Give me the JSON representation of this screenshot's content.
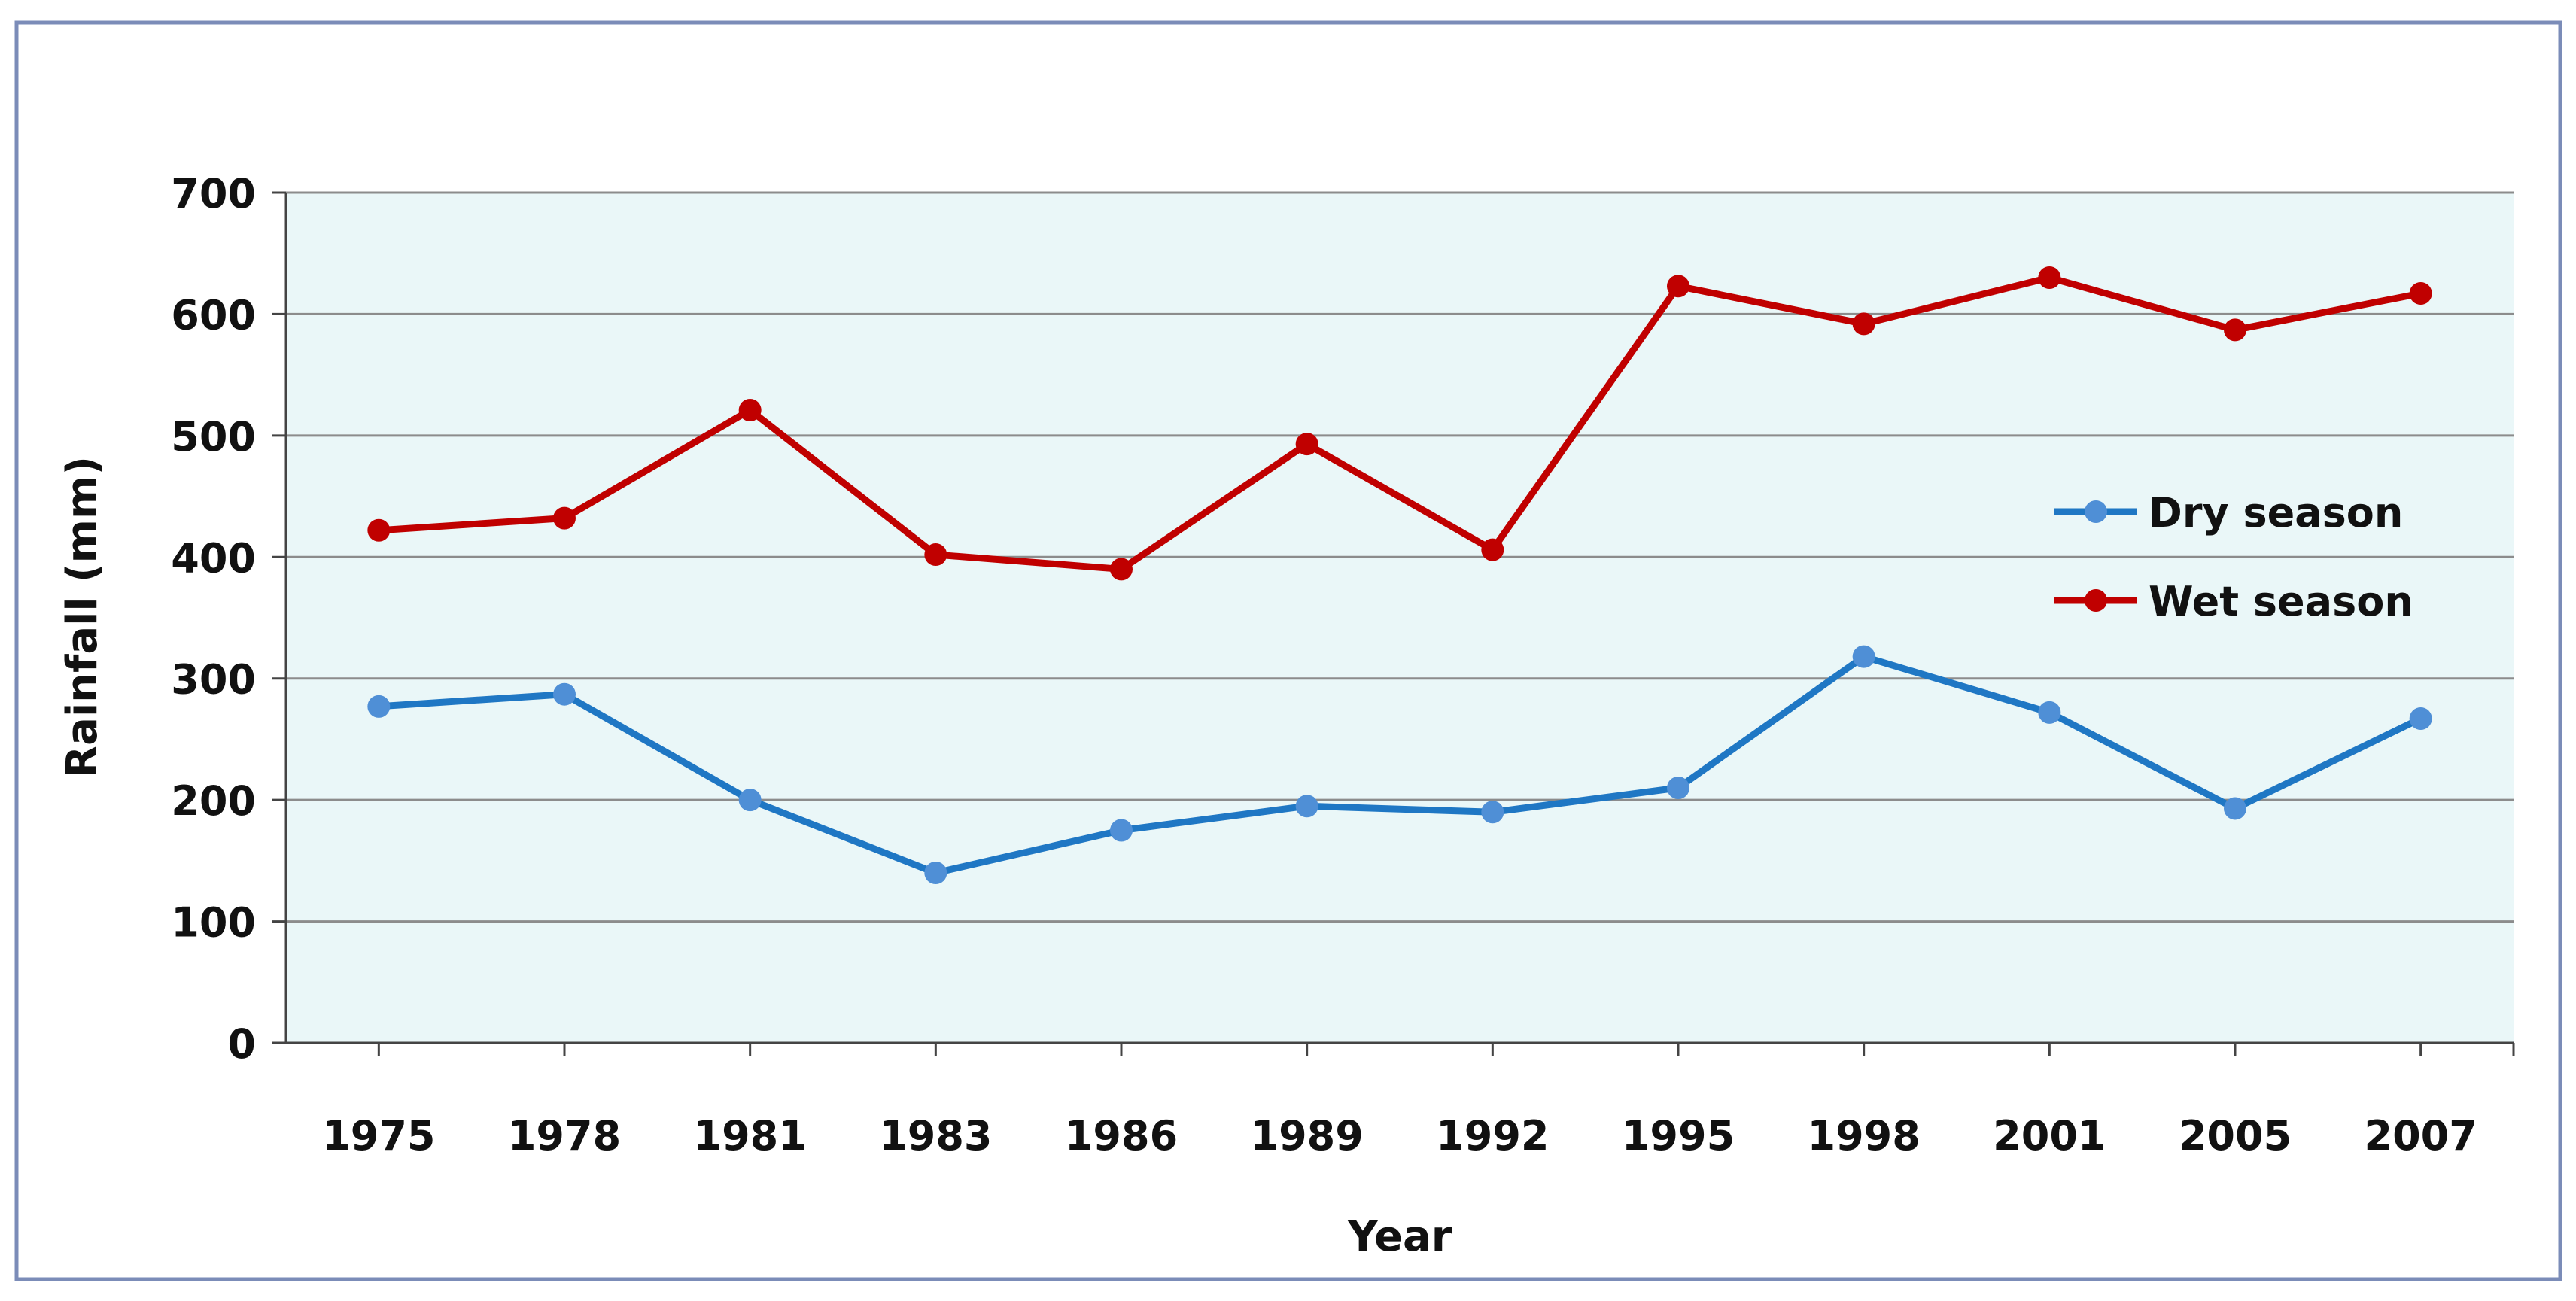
{
  "chart_data": {
    "type": "line",
    "title": "",
    "xlabel": "Year",
    "ylabel": "Rainfall (mm)",
    "categories": [
      "1975",
      "1978",
      "1981",
      "1983",
      "1986",
      "1989",
      "1992",
      "1995",
      "1998",
      "2001",
      "2005",
      "2007"
    ],
    "ylim": [
      0,
      700
    ],
    "yticks": [
      "0",
      "100",
      "200",
      "300",
      "400",
      "500",
      "600",
      "700"
    ],
    "grid": true,
    "legend_position": "right",
    "series": [
      {
        "name": "Dry season",
        "color": "#1F77C4",
        "marker_color": "#4F8FD6",
        "values": [
          277,
          287,
          200,
          140,
          175,
          195,
          190,
          210,
          318,
          272,
          193,
          267
        ]
      },
      {
        "name": "Wet season",
        "color": "#C00000",
        "marker_color": "#C00000",
        "values": [
          422,
          432,
          521,
          402,
          390,
          493,
          406,
          623,
          592,
          630,
          587,
          617
        ]
      }
    ],
    "colors": {
      "plot_background": "#EAF7F8",
      "frame_border": "#7B8CB8",
      "gridline": "#8C8C8C"
    }
  }
}
